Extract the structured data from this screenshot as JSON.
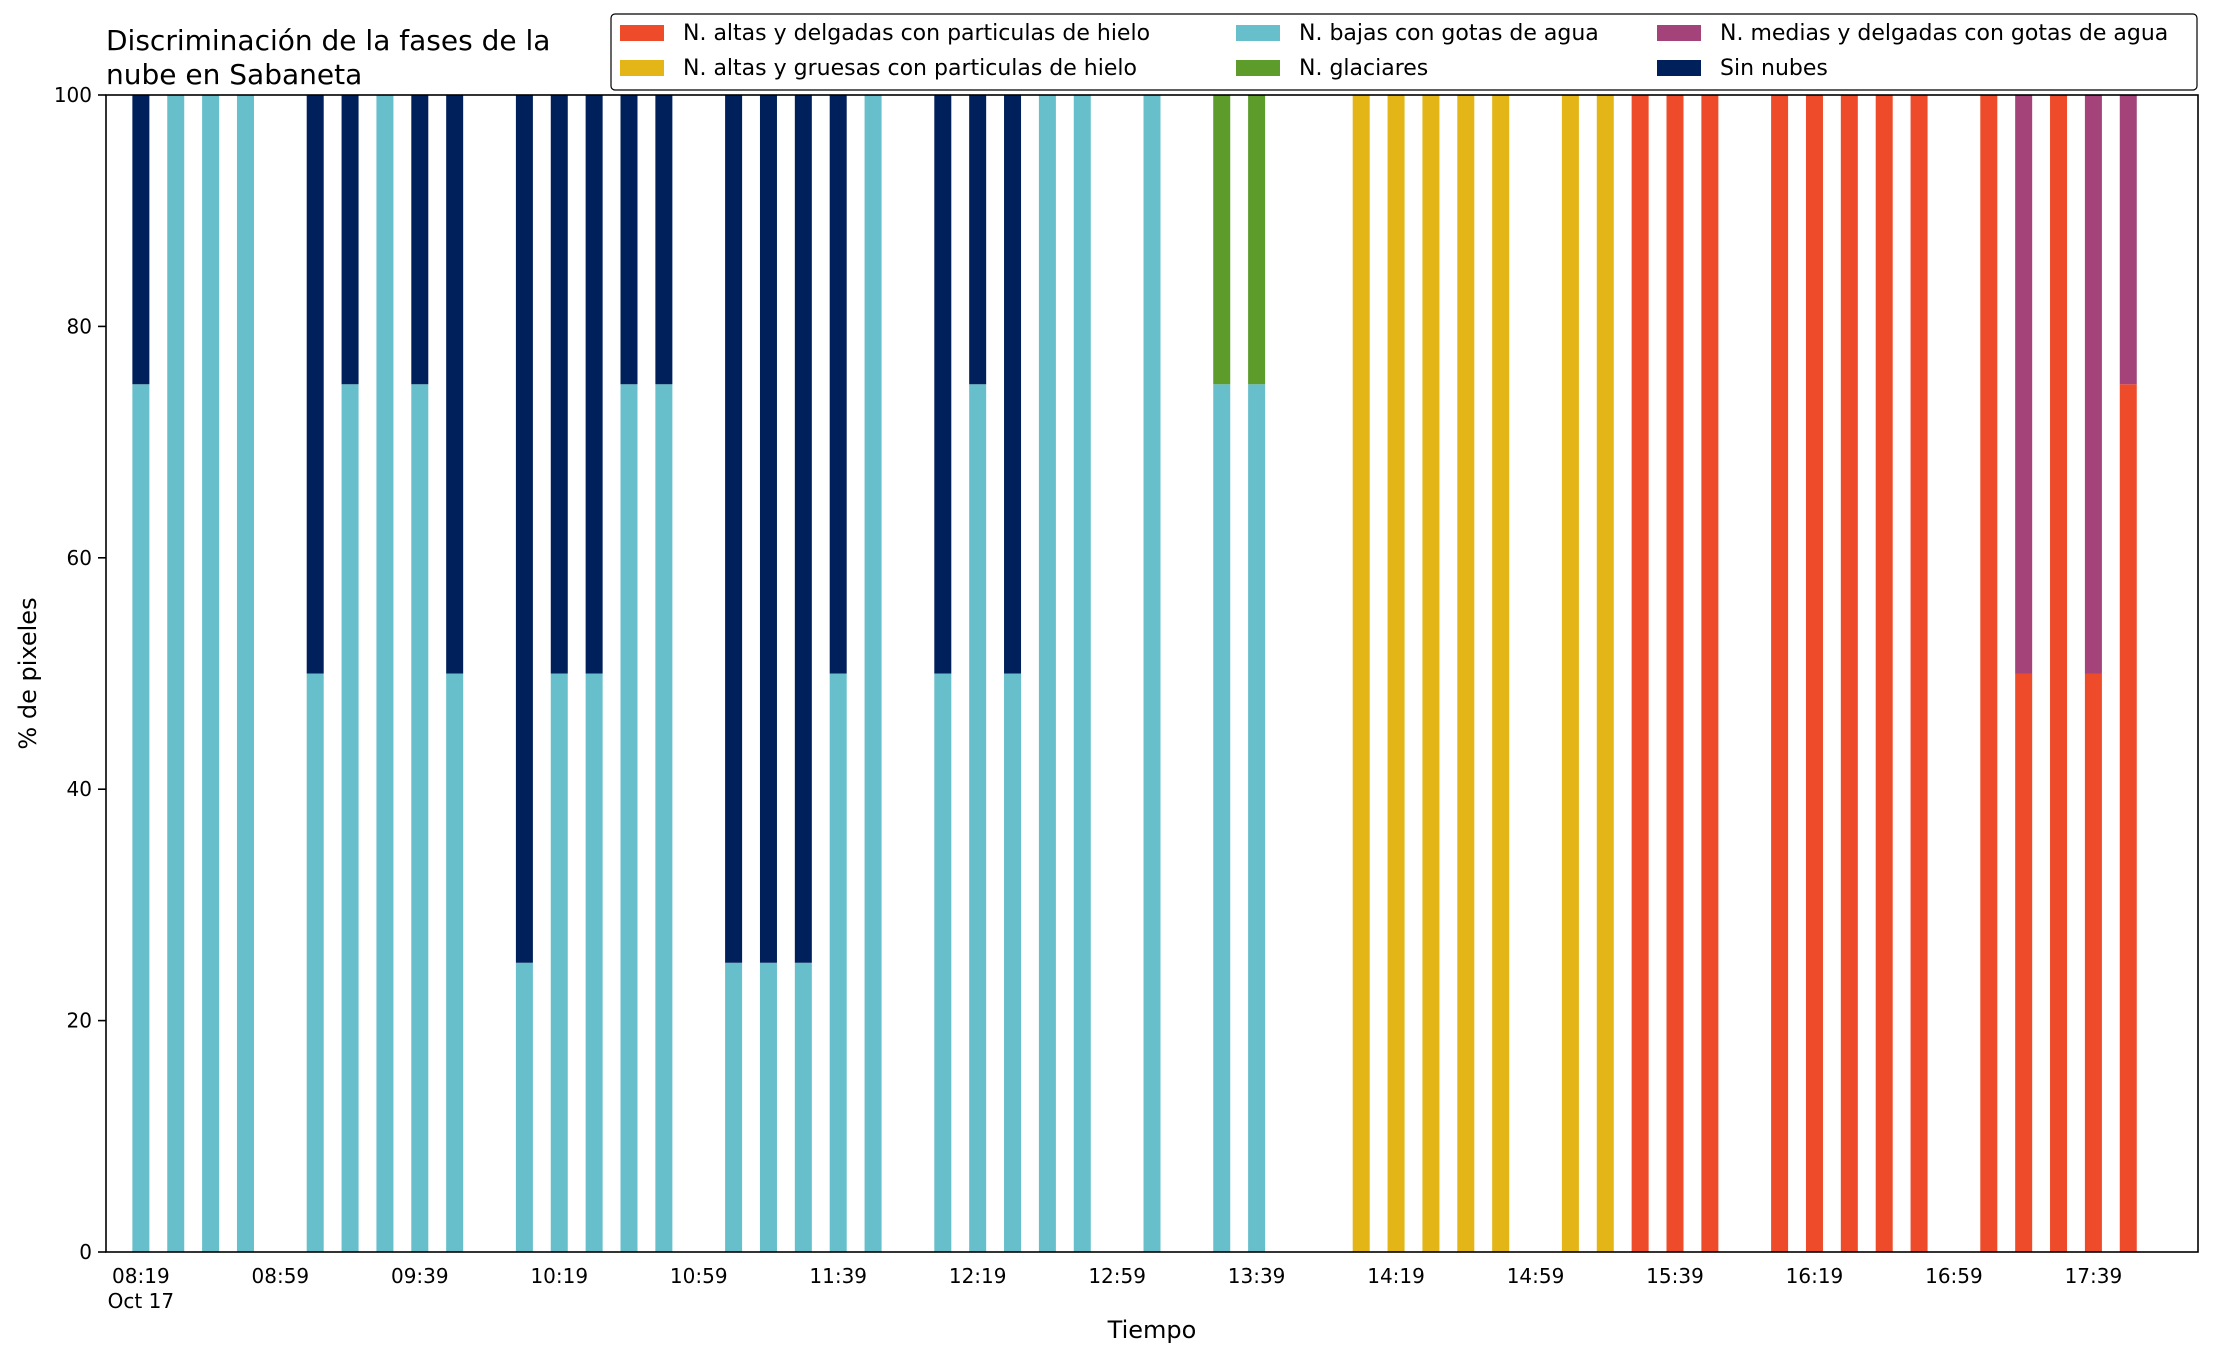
{
  "chart_data": {
    "type": "bar",
    "stacked": true,
    "title": "Discriminación de la fases de la\nnube en Sabaneta",
    "xlabel": "Tiempo",
    "ylabel": "% de pixeles",
    "ylim": [
      0,
      100
    ],
    "yticks": [
      0,
      20,
      40,
      60,
      80,
      100
    ],
    "x_start": "2019-10-17 08:19",
    "x_end": "2019-10-17 17:59",
    "x_range": [
      "08:09",
      "18:09"
    ],
    "xtick_labels": [
      "08:19",
      "08:59",
      "09:39",
      "10:19",
      "10:59",
      "11:39",
      "12:19",
      "12:59",
      "13:39",
      "14:19",
      "14:59",
      "15:39",
      "16:19",
      "16:59",
      "17:39"
    ],
    "xtick_date_label": "Oct 17",
    "minor_tick_minutes": 20,
    "grid": false,
    "legend_position": "top-right",
    "legend_columns": 3,
    "series": [
      {
        "name": "N. altas y delgadas con particulas de hielo",
        "color": "#ee4b2b"
      },
      {
        "name": "N. altas y gruesas con particulas de hielo",
        "color": "#e3b517"
      },
      {
        "name": "N. bajas con gotas de agua",
        "color": "#67bfcb"
      },
      {
        "name": "N. glaciares",
        "color": "#5d9c2b"
      },
      {
        "name": "N. medias y delgadas con gotas de agua",
        "color": "#a3437a"
      },
      {
        "name": "Sin nubes",
        "color": "#00205b"
      }
    ],
    "bars": [
      {
        "time": "08:19",
        "segments": [
          0,
          0,
          75,
          0,
          0,
          25
        ]
      },
      {
        "time": "08:29",
        "segments": [
          0,
          0,
          100,
          0,
          0,
          0
        ]
      },
      {
        "time": "08:39",
        "segments": [
          0,
          0,
          100,
          0,
          0,
          0
        ]
      },
      {
        "time": "08:49",
        "segments": [
          0,
          0,
          100,
          0,
          0,
          0
        ]
      },
      {
        "time": "09:09",
        "segments": [
          0,
          0,
          50,
          0,
          0,
          50
        ]
      },
      {
        "time": "09:19",
        "segments": [
          0,
          0,
          75,
          0,
          0,
          25
        ]
      },
      {
        "time": "09:29",
        "segments": [
          0,
          0,
          100,
          0,
          0,
          0
        ]
      },
      {
        "time": "09:39",
        "segments": [
          0,
          0,
          75,
          0,
          0,
          25
        ]
      },
      {
        "time": "09:49",
        "segments": [
          0,
          0,
          50,
          0,
          0,
          50
        ]
      },
      {
        "time": "10:09",
        "segments": [
          0,
          0,
          25,
          0,
          0,
          75
        ]
      },
      {
        "time": "10:19",
        "segments": [
          0,
          0,
          50,
          0,
          0,
          50
        ]
      },
      {
        "time": "10:29",
        "segments": [
          0,
          0,
          50,
          0,
          0,
          50
        ]
      },
      {
        "time": "10:39",
        "segments": [
          0,
          0,
          75,
          0,
          0,
          25
        ]
      },
      {
        "time": "10:49",
        "segments": [
          0,
          0,
          75,
          0,
          0,
          25
        ]
      },
      {
        "time": "11:09",
        "segments": [
          0,
          0,
          25,
          0,
          0,
          75
        ]
      },
      {
        "time": "11:19",
        "segments": [
          0,
          0,
          25,
          0,
          0,
          75
        ]
      },
      {
        "time": "11:29",
        "segments": [
          0,
          0,
          25,
          0,
          0,
          75
        ]
      },
      {
        "time": "11:39",
        "segments": [
          0,
          0,
          50,
          0,
          0,
          50
        ]
      },
      {
        "time": "11:49",
        "segments": [
          0,
          0,
          100,
          0,
          0,
          0
        ]
      },
      {
        "time": "12:09",
        "segments": [
          0,
          0,
          50,
          0,
          0,
          50
        ]
      },
      {
        "time": "12:19",
        "segments": [
          0,
          0,
          75,
          0,
          0,
          25
        ]
      },
      {
        "time": "12:29",
        "segments": [
          0,
          0,
          50,
          0,
          0,
          50
        ]
      },
      {
        "time": "12:39",
        "segments": [
          0,
          0,
          100,
          0,
          0,
          0
        ]
      },
      {
        "time": "12:49",
        "segments": [
          0,
          0,
          100,
          0,
          0,
          0
        ]
      },
      {
        "time": "13:09",
        "segments": [
          0,
          0,
          100,
          0,
          0,
          0
        ]
      },
      {
        "time": "13:29",
        "segments": [
          0,
          0,
          75,
          25,
          0,
          0
        ]
      },
      {
        "time": "13:39",
        "segments": [
          0,
          0,
          75,
          25,
          0,
          0
        ]
      },
      {
        "time": "14:09",
        "segments": [
          0,
          100,
          0,
          0,
          0,
          0
        ]
      },
      {
        "time": "14:19",
        "segments": [
          0,
          100,
          0,
          0,
          0,
          0
        ]
      },
      {
        "time": "14:29",
        "segments": [
          0,
          100,
          0,
          0,
          0,
          0
        ]
      },
      {
        "time": "14:39",
        "segments": [
          0,
          100,
          0,
          0,
          0,
          0
        ]
      },
      {
        "time": "14:49",
        "segments": [
          0,
          100,
          0,
          0,
          0,
          0
        ]
      },
      {
        "time": "15:09",
        "segments": [
          0,
          100,
          0,
          0,
          0,
          0
        ]
      },
      {
        "time": "15:19",
        "segments": [
          0,
          100,
          0,
          0,
          0,
          0
        ]
      },
      {
        "time": "15:29",
        "segments": [
          100,
          0,
          0,
          0,
          0,
          0
        ]
      },
      {
        "time": "15:39",
        "segments": [
          100,
          0,
          0,
          0,
          0,
          0
        ]
      },
      {
        "time": "15:49",
        "segments": [
          100,
          0,
          0,
          0,
          0,
          0
        ]
      },
      {
        "time": "16:09",
        "segments": [
          100,
          0,
          0,
          0,
          0,
          0
        ]
      },
      {
        "time": "16:19",
        "segments": [
          100,
          0,
          0,
          0,
          0,
          0
        ]
      },
      {
        "time": "16:29",
        "segments": [
          100,
          0,
          0,
          0,
          0,
          0
        ]
      },
      {
        "time": "16:39",
        "segments": [
          100,
          0,
          0,
          0,
          0,
          0
        ]
      },
      {
        "time": "16:49",
        "segments": [
          100,
          0,
          0,
          0,
          0,
          0
        ]
      },
      {
        "time": "17:09",
        "segments": [
          100,
          0,
          0,
          0,
          0,
          0
        ]
      },
      {
        "time": "17:19",
        "segments": [
          50,
          0,
          0,
          0,
          50,
          0
        ]
      },
      {
        "time": "17:29",
        "segments": [
          100,
          0,
          0,
          0,
          0,
          0
        ]
      },
      {
        "time": "17:39",
        "segments": [
          50,
          0,
          0,
          0,
          50,
          0
        ]
      },
      {
        "time": "17:49",
        "segments": [
          75,
          0,
          0,
          0,
          25,
          0
        ]
      }
    ]
  }
}
